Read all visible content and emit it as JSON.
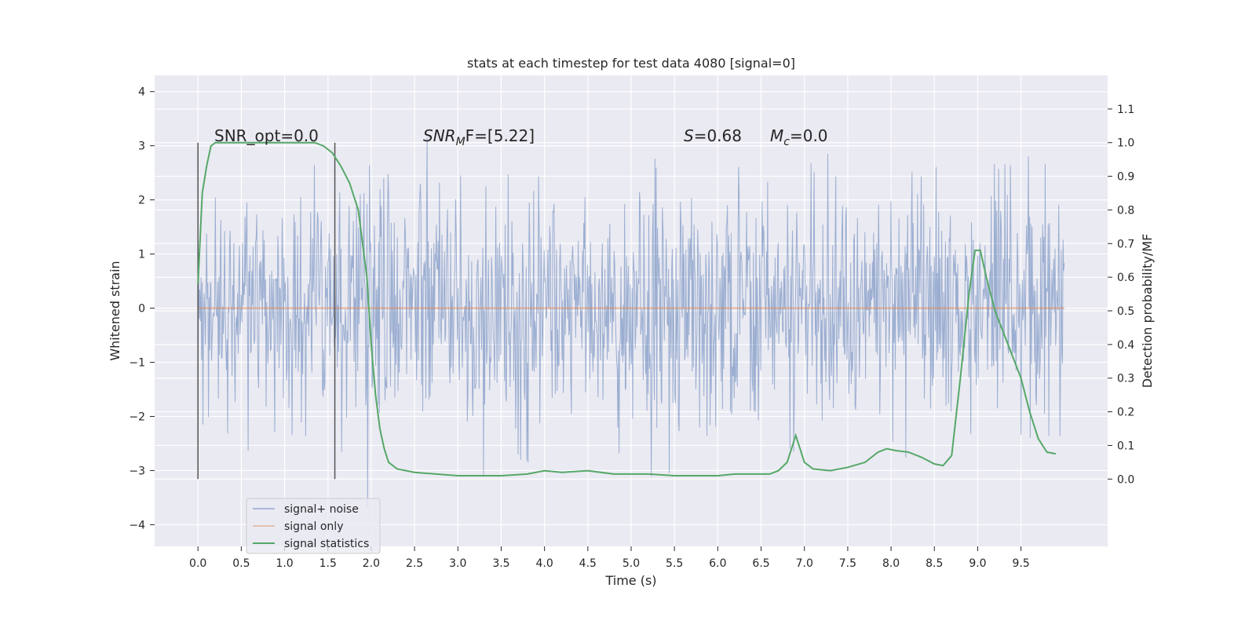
{
  "chart_data": {
    "type": "line",
    "title": "stats at each timestep for test data 4080 [signal=0]",
    "xlabel": "Time (s)",
    "ylabel_left": "Whitened strain",
    "ylabel_right": "Detection probability/MF",
    "xlim": [
      -0.5,
      10.5
    ],
    "ylim_left": [
      -4.4,
      4.3
    ],
    "ylim_right": [
      -0.2,
      1.2
    ],
    "x_ticks": [
      "0.0",
      "0.5",
      "1.0",
      "1.5",
      "2.0",
      "2.5",
      "3.0",
      "3.5",
      "4.0",
      "4.5",
      "5.0",
      "5.5",
      "6.0",
      "6.5",
      "7.0",
      "7.5",
      "8.0",
      "8.5",
      "9.0",
      "9.5"
    ],
    "y_left_ticks": [
      "4",
      "3",
      "2",
      "1",
      "0",
      "−1",
      "−2",
      "−3",
      "−4"
    ],
    "y_right_ticks": [
      "1.1",
      "1.0",
      "0.9",
      "0.8",
      "0.7",
      "0.6",
      "0.5",
      "0.4",
      "0.3",
      "0.2",
      "0.1",
      "0.0"
    ],
    "grid": true,
    "background": "#eaeaf2",
    "vlines": [
      0.0,
      1.58
    ],
    "annotations": {
      "snr_opt": "SNR_opt=0.0",
      "snr_mf_main": "SNR",
      "snr_mf_sub": "M",
      "snr_mf_rest": "F=[5.22]",
      "s_main": "S",
      "s_rest": "=0.68",
      "mc_main": "M",
      "mc_sub": "c",
      "mc_rest": "=0.0"
    },
    "legend": {
      "position": "lower-left",
      "entries": [
        "signal+ noise",
        "signal only",
        "signal statistics"
      ]
    },
    "series": [
      {
        "name": "signal+ noise",
        "color": "#4c72b0",
        "axis": "left",
        "description_range": [
          -4.1,
          3.9
        ],
        "x_range": [
          0.0,
          10.0
        ]
      },
      {
        "name": "signal only",
        "color": "#dd8452",
        "axis": "left",
        "x": [
          0.0,
          10.0
        ],
        "y": [
          0.0,
          0.0
        ]
      },
      {
        "name": "signal statistics",
        "color": "#55a868",
        "axis": "right",
        "x": [
          0.0,
          0.05,
          0.1,
          0.15,
          0.2,
          0.3,
          0.5,
          0.8,
          1.0,
          1.2,
          1.35,
          1.45,
          1.55,
          1.65,
          1.75,
          1.85,
          1.95,
          2.0,
          2.05,
          2.1,
          2.15,
          2.2,
          2.3,
          2.5,
          3.0,
          3.5,
          3.8,
          4.0,
          4.2,
          4.5,
          4.8,
          5.0,
          5.2,
          5.5,
          5.8,
          6.0,
          6.2,
          6.4,
          6.6,
          6.7,
          6.8,
          6.9,
          7.0,
          7.1,
          7.3,
          7.5,
          7.7,
          7.85,
          7.95,
          8.05,
          8.2,
          8.35,
          8.5,
          8.6,
          8.7,
          8.8,
          8.9,
          8.97,
          9.03,
          9.1,
          9.2,
          9.35,
          9.5,
          9.6,
          9.7,
          9.8,
          9.9
        ],
        "y": [
          0.58,
          0.85,
          0.93,
          0.99,
          1.0,
          1.0,
          1.0,
          1.0,
          1.0,
          1.0,
          1.0,
          0.99,
          0.97,
          0.93,
          0.88,
          0.8,
          0.6,
          0.4,
          0.25,
          0.15,
          0.09,
          0.05,
          0.03,
          0.02,
          0.01,
          0.01,
          0.015,
          0.025,
          0.02,
          0.025,
          0.015,
          0.015,
          0.015,
          0.01,
          0.01,
          0.01,
          0.015,
          0.015,
          0.015,
          0.025,
          0.05,
          0.13,
          0.05,
          0.03,
          0.025,
          0.035,
          0.05,
          0.08,
          0.09,
          0.085,
          0.08,
          0.065,
          0.045,
          0.04,
          0.07,
          0.3,
          0.55,
          0.68,
          0.68,
          0.6,
          0.5,
          0.4,
          0.3,
          0.2,
          0.12,
          0.08,
          0.075
        ]
      }
    ]
  }
}
